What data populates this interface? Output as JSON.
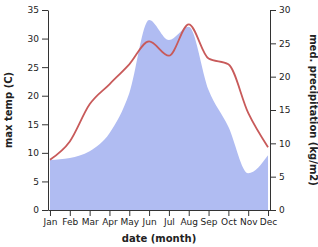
{
  "chart_data": {
    "type": "line",
    "categories": [
      "Jan",
      "Feb",
      "Mar",
      "Apr",
      "May",
      "Jun",
      "Jul",
      "Aug",
      "Sep",
      "Oct",
      "Nov",
      "Dec"
    ],
    "x_label": "date (month)",
    "y_label": "max temp (C)",
    "y2_label": "med. precipitation (kg/m2)",
    "ylim": [
      0,
      35
    ],
    "yticks": [
      0,
      5,
      10,
      15,
      20,
      25,
      30,
      35
    ],
    "y2lim": [
      0,
      30
    ],
    "y2ticks": [
      0,
      5,
      10,
      15,
      20,
      25,
      30
    ],
    "grid": false,
    "series": [
      {
        "name": "max temp",
        "type": "line",
        "color": "#c85a5a",
        "values": [
          8.8,
          12,
          18.5,
          22,
          25.5,
          29.5,
          27,
          32.5,
          26.5,
          25.5,
          17,
          11
        ]
      },
      {
        "name": "med. precipitation",
        "type": "area",
        "axis": "y2",
        "color": "#b0bcf2",
        "values": [
          7.5,
          7.8,
          8.8,
          11.5,
          17.5,
          28.5,
          25.5,
          27.5,
          18,
          12.5,
          5.5,
          8.2
        ]
      }
    ]
  }
}
